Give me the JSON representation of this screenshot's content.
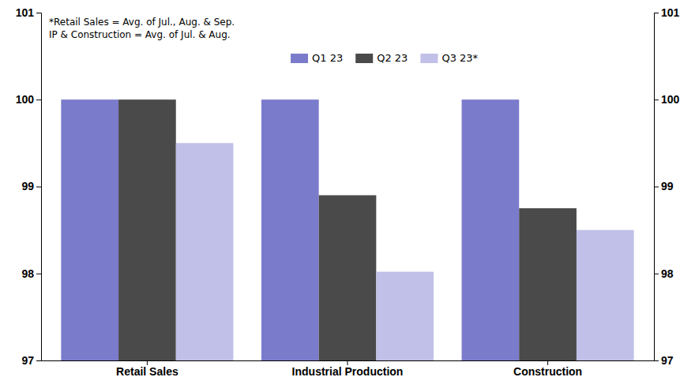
{
  "chart_data": {
    "type": "bar",
    "categories": [
      "Retail Sales",
      "Industrial Production",
      "Construction"
    ],
    "series": [
      {
        "name": "Q1 23",
        "color": "#7B7BCC",
        "values": [
          100.0,
          100.0,
          100.0
        ]
      },
      {
        "name": "Q2 23",
        "color": "#4A4A4A",
        "values": [
          100.0,
          98.9,
          98.75
        ]
      },
      {
        "name": "Q3 23*",
        "color": "#C0C0E8",
        "values": [
          99.5,
          98.02,
          98.5
        ]
      }
    ],
    "ylim": [
      97,
      101
    ],
    "yticks": [
      97,
      98,
      99,
      100,
      101
    ],
    "y2lim": [
      97,
      101
    ],
    "y2ticks": [
      97,
      98,
      99,
      100,
      101
    ],
    "grid": false,
    "legend": "top",
    "annotations": [
      "*Retail Sales = Avg. of Jul., Aug. & Sep.",
      "IP & Construction = Avg. of Jul. & Aug."
    ]
  }
}
